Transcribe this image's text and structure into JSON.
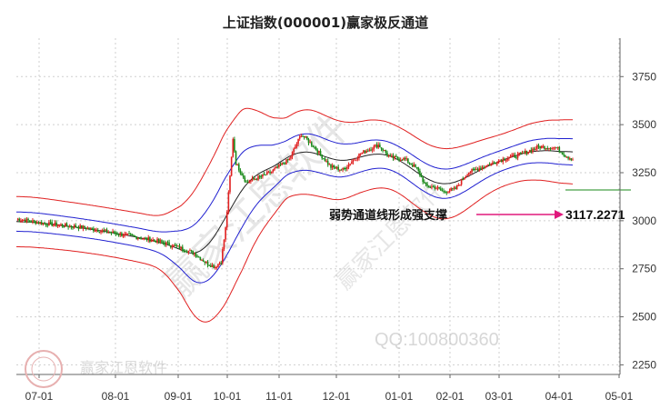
{
  "chart_data": {
    "type": "candlestick",
    "title": "上证指数(000001)赢家极反通道",
    "y_ticks": [
      2250,
      2500,
      2750,
      3000,
      3250,
      3500,
      3750
    ],
    "y_range": [
      2200,
      3950
    ],
    "x_ticks": [
      "07-01",
      "08-01",
      "09-01",
      "10-01",
      "11-01",
      "12-01",
      "01-01",
      "02-01",
      "03-01",
      "04-01",
      "05-01"
    ],
    "annotation_text": "弱势通道线形成强支撑",
    "support_value": "3117.2271",
    "support_level": 3117.2271,
    "watermark_text": "赢家江恩软件",
    "watermark_qq": "QQ:100800360",
    "band_colors": {
      "outer": "#e02020",
      "inner": "#2020d0",
      "middle": "#222222",
      "up_candle": "#e02020",
      "down_candle": "#1a8a1a",
      "arrow": "#e0187c",
      "support_line": "#1a8a1a"
    }
  }
}
